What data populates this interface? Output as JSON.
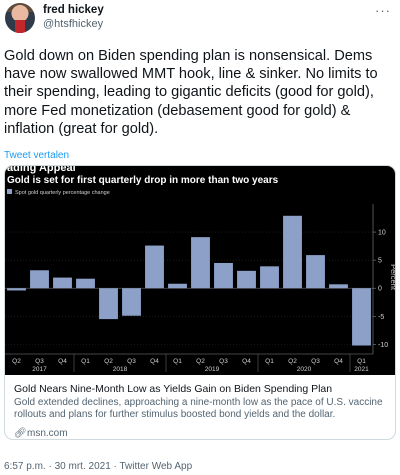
{
  "author": {
    "name": "fred hickey",
    "handle": "@htsfhickey"
  },
  "tweet": {
    "text": "Gold down on Biden spending plan is nonsensical. Dems have now swallowed MMT hook, line & sinker. No limits to their spending, leading to gigantic deficits (good for gold), more Fed monetization (debasement good for gold) & inflation (great for gold).",
    "translate": "Tweet vertalen"
  },
  "card": {
    "title": "Gold Nears Nine-Month Low as Yields Gain on Biden Spending Plan",
    "description": "Gold extended declines, approaching a nine-month low as the pace of U.S. vaccine rollouts and plans for further stimulus boosted bond yields and the dollar.",
    "domain": "msn.com"
  },
  "meta": {
    "time": "6:57 p.m.",
    "date": "30 mrt. 2021",
    "source": "Twitter Web App",
    "separator": "·"
  },
  "chart_data": {
    "type": "bar",
    "title": "Gold is set for first quarterly drop in more than two years",
    "cut_heading": "ading Appeal",
    "legend": [
      "Spot gold quarterly percentage change"
    ],
    "ylabel": "Percent",
    "ylim": [
      -11,
      15
    ],
    "yticks": [
      10,
      5,
      0,
      -5,
      -10
    ],
    "categories": [
      "Q2 2017",
      "Q3 2017",
      "Q4 2017",
      "Q1 2018",
      "Q2 2018",
      "Q3 2018",
      "Q4 2018",
      "Q1 2019",
      "Q2 2019",
      "Q3 2019",
      "Q4 2019",
      "Q1 2020",
      "Q2 2020",
      "Q3 2020",
      "Q4 2020",
      "Q1 2021"
    ],
    "tick_labels": [
      "Q2",
      "Q3",
      "Q4",
      "Q1",
      "Q2",
      "Q3",
      "Q4",
      "Q1",
      "Q2",
      "Q3",
      "Q4",
      "Q1",
      "Q2",
      "Q3",
      "Q4",
      "Q1"
    ],
    "year_labels": [
      {
        "label": "2017",
        "index": 1
      },
      {
        "label": "2018",
        "index": 4.5
      },
      {
        "label": "2019",
        "index": 8.5
      },
      {
        "label": "2020",
        "index": 12.5
      },
      {
        "label": "2021",
        "index": 15
      }
    ],
    "values": [
      -0.4,
      3.2,
      1.9,
      1.7,
      -5.5,
      -4.9,
      7.6,
      0.8,
      9.1,
      4.5,
      3.1,
      3.9,
      12.9,
      5.9,
      0.7,
      -10.2
    ],
    "bar_color": "#8ca0c8",
    "background": "#000000"
  }
}
